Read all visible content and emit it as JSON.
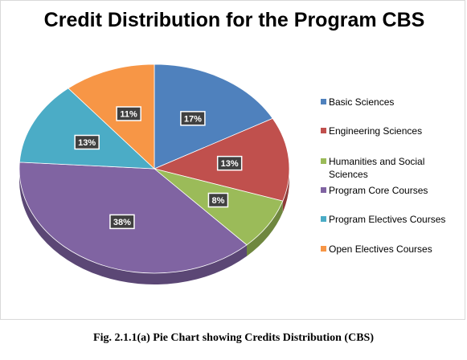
{
  "caption": "Fig. 2.1.1(a) Pie Chart showing Credits Distribution (CBS)",
  "chart_data": {
    "type": "pie",
    "title": "Credit Distribution for the Program CBS",
    "legend_position": "right",
    "three_d": true,
    "slices": [
      {
        "label": "Basic Sciences",
        "percent": 17,
        "display": "17%",
        "color": "#4f81bd",
        "side_color": "#3a5f8b"
      },
      {
        "label": "Engineering Sciences",
        "percent": 13,
        "display": "13%",
        "color": "#c0504d",
        "side_color": "#8e3b39"
      },
      {
        "label": "Humanities and Social Sciences",
        "percent": 8,
        "display": "8%",
        "color": "#9bbb59",
        "side_color": "#6f873f"
      },
      {
        "label": "Program Core Courses",
        "percent": 38,
        "display": "38%",
        "color": "#8064a2",
        "side_color": "#5b4775"
      },
      {
        "label": "Program Electives Courses",
        "percent": 13,
        "display": "13%",
        "color": "#4bacc6",
        "side_color": "#357c8f"
      },
      {
        "label": "Open Electives Courses",
        "percent": 11,
        "display": "11%",
        "color": "#f79646",
        "side_color": "#b86e31"
      }
    ]
  }
}
